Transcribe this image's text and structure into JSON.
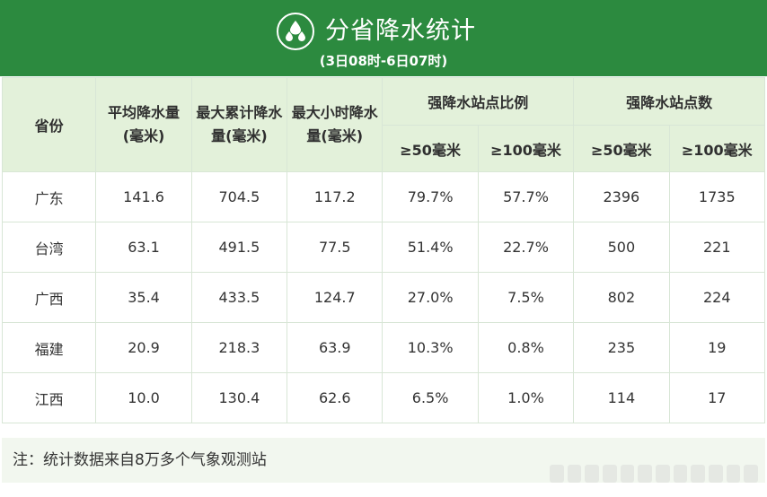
{
  "header": {
    "title": "分省降水统计",
    "subtitle": "(3日08时-6日07时)",
    "icon": "raindrops-icon",
    "color": "#2c8a3f"
  },
  "table": {
    "headers": {
      "province": "省份",
      "avg": "平均降水量(毫米)",
      "max_total": "最大累计降水量(毫米)",
      "max_hourly": "最大小时降水量(毫米)",
      "ratio_group": "强降水站点比例",
      "count_group": "强降水站点数",
      "ge50": "≥50毫米",
      "ge100": "≥100毫米"
    },
    "rows": [
      {
        "province": "广东",
        "avg": "141.6",
        "max_total": "704.5",
        "max_hourly": "117.2",
        "ratio50": "79.7%",
        "ratio100": "57.7%",
        "count50": "2396",
        "count100": "1735"
      },
      {
        "province": "台湾",
        "avg": "63.1",
        "max_total": "491.5",
        "max_hourly": "77.5",
        "ratio50": "51.4%",
        "ratio100": "22.7%",
        "count50": "500",
        "count100": "221"
      },
      {
        "province": "广西",
        "avg": "35.4",
        "max_total": "433.5",
        "max_hourly": "124.7",
        "ratio50": "27.0%",
        "ratio100": "7.5%",
        "count50": "802",
        "count100": "224"
      },
      {
        "province": "福建",
        "avg": "20.9",
        "max_total": "218.3",
        "max_hourly": "63.9",
        "ratio50": "10.3%",
        "ratio100": "0.8%",
        "count50": "235",
        "count100": "19"
      },
      {
        "province": "江西",
        "avg": "10.0",
        "max_total": "130.4",
        "max_hourly": "62.6",
        "ratio50": "6.5%",
        "ratio100": "1.0%",
        "count50": "114",
        "count100": "17"
      }
    ]
  },
  "note": "注：统计数据来自8万多个气象观测站"
}
